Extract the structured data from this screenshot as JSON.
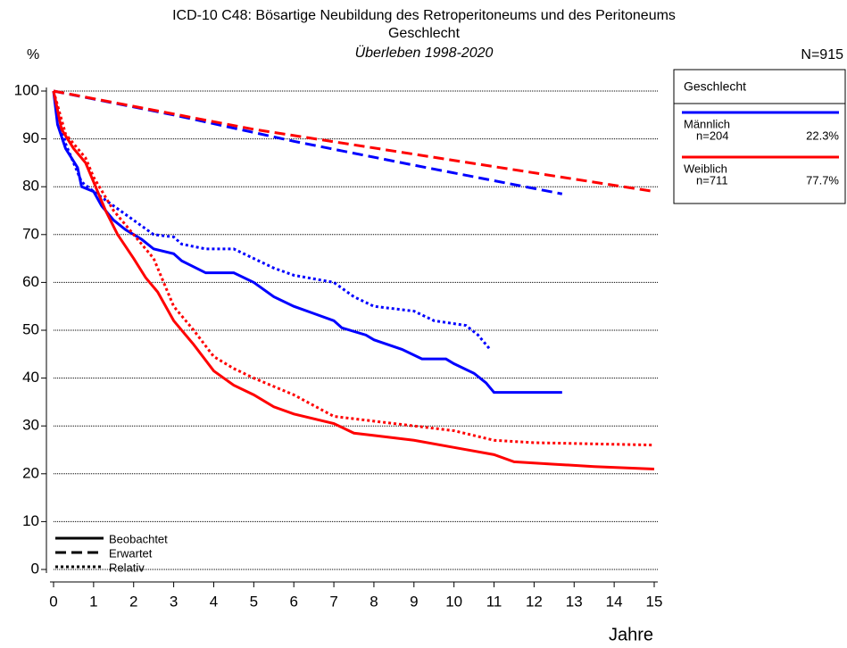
{
  "chart_data": {
    "type": "line",
    "title": "ICD-10 C48: Bösartige Neubildung des Retroperitoneums und des Peritoneums",
    "subtitle": "Geschlecht",
    "subtitle2": "Überleben 1998-2020",
    "y_label": "%",
    "n_label": "N=915",
    "x_label": "Jahre",
    "legend_title": "Geschlecht",
    "xlim": [
      0,
      15
    ],
    "xticks": [
      0,
      1,
      2,
      3,
      4,
      5,
      6,
      7,
      8,
      9,
      10,
      11,
      12,
      13,
      14,
      15
    ],
    "ylim": [
      0,
      100
    ],
    "yticks": [
      0,
      10,
      20,
      30,
      40,
      50,
      60,
      70,
      80,
      90,
      100
    ],
    "grid": true,
    "styles": [
      {
        "name": "Beobachtet",
        "dash": "solid"
      },
      {
        "name": "Erwartet",
        "dash": "dashed"
      },
      {
        "name": "Relativ",
        "dash": "dotted"
      }
    ],
    "groups": [
      {
        "name": "Männlich",
        "count": "n=204",
        "share": "22.3%",
        "color": "#0000ff"
      },
      {
        "name": "Weiblich",
        "count": "n=711",
        "share": "77.7%",
        "color": "#ff0000"
      }
    ],
    "series": [
      {
        "group": 0,
        "style": 0,
        "x": [
          0,
          0.1,
          0.3,
          0.6,
          0.7,
          1.0,
          1.2,
          1.5,
          1.8,
          2.2,
          2.5,
          3.0,
          3.2,
          3.8,
          4.5,
          5.0,
          5.5,
          6.0,
          6.5,
          7.0,
          7.2,
          7.8,
          8.0,
          8.7,
          9.2,
          9.8,
          10.0,
          10.5,
          10.8,
          11.0,
          12.7
        ],
        "values": [
          100,
          93,
          88,
          84,
          80,
          79,
          76,
          73,
          71,
          69,
          67,
          66,
          64.5,
          62,
          62,
          60,
          57,
          55,
          53.5,
          52,
          50.5,
          49,
          48,
          46,
          44,
          44,
          43,
          41,
          39,
          37,
          37
        ]
      },
      {
        "group": 0,
        "style": 1,
        "x": [
          0,
          3,
          6,
          9,
          12.7
        ],
        "values": [
          100,
          95,
          89.5,
          84.5,
          78.5
        ]
      },
      {
        "group": 0,
        "style": 2,
        "x": [
          0,
          0.3,
          0.7,
          1.0,
          1.5,
          2.0,
          2.5,
          3.0,
          3.2,
          3.8,
          4.5,
          5.0,
          5.5,
          6.0,
          7.0,
          7.5,
          8.0,
          9.0,
          9.5,
          10.3,
          10.6,
          10.9
        ],
        "values": [
          100,
          89,
          81,
          79,
          76,
          73,
          70,
          69.5,
          68,
          67,
          67,
          65,
          63,
          61.5,
          60,
          57,
          55,
          54,
          52,
          51,
          49,
          46
        ]
      },
      {
        "group": 1,
        "style": 0,
        "x": [
          0,
          0.2,
          0.5,
          0.8,
          1.0,
          1.3,
          1.6,
          2.0,
          2.3,
          2.6,
          3.0,
          3.5,
          4.0,
          4.5,
          5.0,
          5.5,
          6.0,
          7.0,
          7.5,
          8.0,
          9.0,
          10.0,
          11.0,
          11.5,
          12.5,
          13.5,
          15
        ],
        "values": [
          100,
          92,
          88,
          85,
          81,
          75,
          70,
          65,
          61,
          58,
          52,
          47,
          41.5,
          38.5,
          36.5,
          34,
          32.5,
          30.5,
          28.5,
          28,
          27,
          25.5,
          24,
          22.5,
          22,
          21.5,
          21
        ]
      },
      {
        "group": 1,
        "style": 1,
        "x": [
          0,
          5,
          10,
          15
        ],
        "values": [
          100,
          92,
          85.5,
          79
        ]
      },
      {
        "group": 1,
        "style": 2,
        "x": [
          0,
          0.3,
          0.8,
          1.0,
          1.5,
          2.0,
          2.5,
          3.0,
          3.5,
          4.0,
          4.5,
          5.0,
          6.0,
          7.0,
          8.0,
          9.0,
          10.0,
          11.0,
          12.0,
          15
        ],
        "values": [
          100,
          91,
          86,
          82,
          75,
          70,
          65,
          55,
          50,
          44.5,
          42,
          40,
          36.5,
          32,
          31,
          30,
          29,
          27,
          26.5,
          26
        ]
      }
    ]
  }
}
